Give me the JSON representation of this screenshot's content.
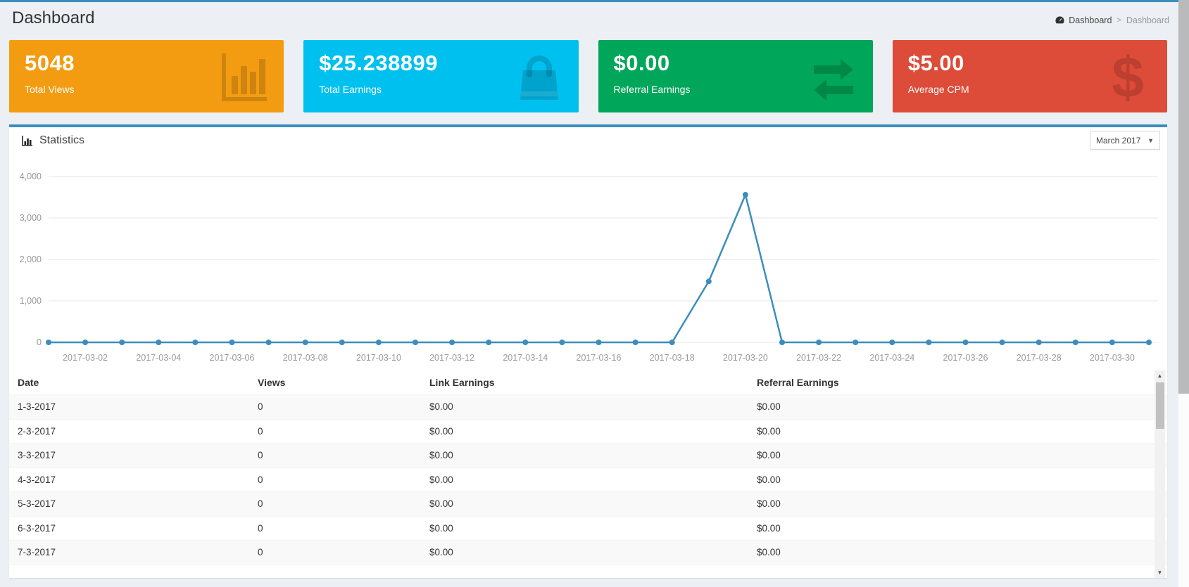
{
  "page": {
    "title": "Dashboard"
  },
  "breadcrumb": {
    "home": "Dashboard",
    "separator": ">",
    "current": "Dashboard"
  },
  "stat_cards": [
    {
      "value": "5048",
      "label": "Total Views",
      "color": "#f39c12",
      "icon": "bar-chart-icon"
    },
    {
      "value": "$25.238899",
      "label": "Total Earnings",
      "color": "#00c0ef",
      "icon": "shopping-bag-icon"
    },
    {
      "value": "$0.00",
      "label": "Referral Earnings",
      "color": "#00a65a",
      "icon": "exchange-arrows-icon"
    },
    {
      "value": "$5.00",
      "label": "Average CPM",
      "color": "#dd4b39",
      "icon": "dollar-icon"
    }
  ],
  "statistics_panel": {
    "title": "Statistics",
    "month_select": {
      "value": "March 2017"
    }
  },
  "chart_data": {
    "type": "line",
    "title": "Statistics",
    "x": [
      "2017-03-01",
      "2017-03-02",
      "2017-03-03",
      "2017-03-04",
      "2017-03-05",
      "2017-03-06",
      "2017-03-07",
      "2017-03-08",
      "2017-03-09",
      "2017-03-10",
      "2017-03-11",
      "2017-03-12",
      "2017-03-13",
      "2017-03-14",
      "2017-03-15",
      "2017-03-16",
      "2017-03-17",
      "2017-03-18",
      "2017-03-19",
      "2017-03-20",
      "2017-03-21",
      "2017-03-22",
      "2017-03-23",
      "2017-03-24",
      "2017-03-25",
      "2017-03-26",
      "2017-03-27",
      "2017-03-28",
      "2017-03-29",
      "2017-03-30",
      "2017-03-31"
    ],
    "values": [
      0,
      0,
      0,
      0,
      0,
      0,
      0,
      0,
      0,
      0,
      0,
      0,
      0,
      0,
      0,
      0,
      0,
      0,
      1470,
      3560,
      0,
      0,
      0,
      0,
      0,
      0,
      0,
      0,
      0,
      0,
      0
    ],
    "xtick_labels": [
      "2017-03-02",
      "2017-03-04",
      "2017-03-06",
      "2017-03-08",
      "2017-03-10",
      "2017-03-12",
      "2017-03-14",
      "2017-03-16",
      "2017-03-18",
      "2017-03-20",
      "2017-03-22",
      "2017-03-24",
      "2017-03-26",
      "2017-03-28",
      "2017-03-30"
    ],
    "yticks": [
      0,
      1000,
      2000,
      3000,
      4000
    ],
    "ytick_labels": [
      "0",
      "1,000",
      "2,000",
      "3,000",
      "4,000"
    ],
    "ylim": [
      0,
      4000
    ],
    "grid": true,
    "legend": "none",
    "line_color": "#3c8dbc",
    "grid_color": "#e4e4e4",
    "tick_color": "#999999"
  },
  "table": {
    "columns": [
      "Date",
      "Views",
      "Link Earnings",
      "Referral Earnings"
    ],
    "rows": [
      [
        "1-3-2017",
        "0",
        "$0.00",
        "$0.00"
      ],
      [
        "2-3-2017",
        "0",
        "$0.00",
        "$0.00"
      ],
      [
        "3-3-2017",
        "0",
        "$0.00",
        "$0.00"
      ],
      [
        "4-3-2017",
        "0",
        "$0.00",
        "$0.00"
      ],
      [
        "5-3-2017",
        "0",
        "$0.00",
        "$0.00"
      ],
      [
        "6-3-2017",
        "0",
        "$0.00",
        "$0.00"
      ],
      [
        "7-3-2017",
        "0",
        "$0.00",
        "$0.00"
      ]
    ]
  }
}
